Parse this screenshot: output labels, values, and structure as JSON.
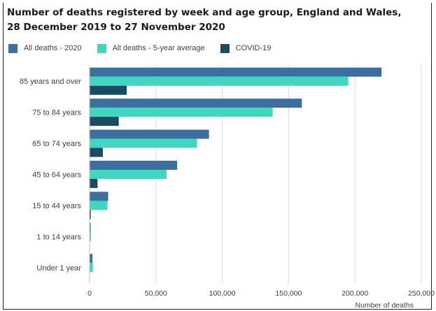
{
  "title_line1": "Number of deaths registered by week and age group, England and Wales,",
  "title_line2": "28 December 2019 to 27 November 2020",
  "chart_data": {
    "type": "bar",
    "orientation": "horizontal",
    "categories": [
      "85 years and over",
      "75 to 84 years",
      "65 to 74 years",
      "45 to 64 years",
      "15 to 44 years",
      "1 to 14 years",
      "Under 1 year"
    ],
    "series": [
      {
        "name": "All deaths - 2020",
        "color": "#3c6fa0",
        "values": [
          220000,
          160000,
          90000,
          66000,
          14000,
          800,
          2200
        ]
      },
      {
        "name": "All deaths - 5-year average",
        "color": "#3fd7c0",
        "values": [
          195000,
          138000,
          81000,
          58000,
          13500,
          1000,
          2500
        ]
      },
      {
        "name": "COVID-19",
        "color": "#1b4a62",
        "values": [
          28000,
          22000,
          10000,
          6000,
          900,
          50,
          20
        ]
      }
    ],
    "xlim": [
      0,
      250000
    ],
    "xticks": [
      0,
      50000,
      100000,
      150000,
      200000,
      250000
    ],
    "xtick_labels": [
      "0",
      "50,000",
      "100,000",
      "150,000",
      "200,000",
      "250,000"
    ],
    "xlabel": "Number of deaths",
    "ylabel": "",
    "grid": "vertical",
    "legend_position": "top-left"
  }
}
